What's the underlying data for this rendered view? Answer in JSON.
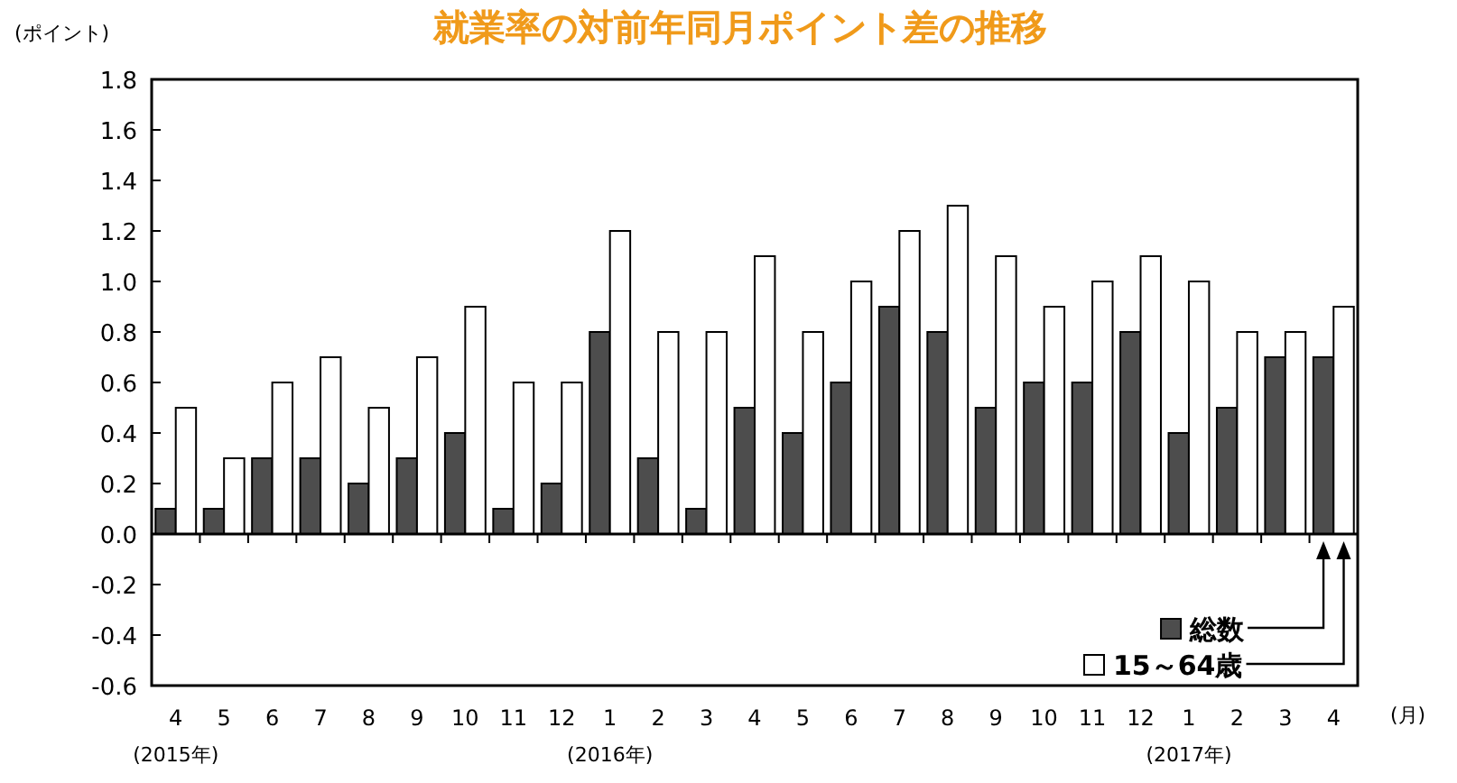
{
  "chart_data": {
    "type": "bar",
    "title": "就業率の対前年同月ポイント差の推移",
    "ylabel": "(ポイント)",
    "xlabel": "(月)",
    "categories": [
      "4\n(2015年)",
      "5",
      "6",
      "7",
      "8",
      "9",
      "10",
      "11",
      "12",
      "1\n(2016年)",
      "2",
      "3",
      "4",
      "5",
      "6",
      "7",
      "8",
      "9",
      "10",
      "11",
      "12",
      "1\n(2017年)",
      "2",
      "3",
      "4"
    ],
    "series": [
      {
        "name": "総数",
        "color": "#4d4d4d",
        "values": [
          0.1,
          0.1,
          0.3,
          0.3,
          0.2,
          0.3,
          0.4,
          0.1,
          0.2,
          0.8,
          0.3,
          0.1,
          0.5,
          0.4,
          0.6,
          0.9,
          0.8,
          0.5,
          0.6,
          0.6,
          0.8,
          0.4,
          0.5,
          0.7,
          0.7
        ]
      },
      {
        "name": "15～64歳",
        "color": "#ffffff",
        "values": [
          0.5,
          0.3,
          0.6,
          0.7,
          0.5,
          0.7,
          0.9,
          0.6,
          0.6,
          1.2,
          0.8,
          0.8,
          1.1,
          0.8,
          1.0,
          1.2,
          1.3,
          1.1,
          0.9,
          1.0,
          1.1,
          1.0,
          0.8,
          0.8,
          0.9
        ]
      }
    ],
    "ylim": [
      -0.6,
      1.8
    ],
    "yticks": [
      {
        "value": -0.6,
        "label": "-0.6"
      },
      {
        "value": -0.4,
        "label": "-0.4"
      },
      {
        "value": -0.2,
        "label": "-0.2"
      },
      {
        "value": 0,
        "label": "0.0"
      },
      {
        "value": 0.2,
        "label": "0.2"
      },
      {
        "value": 0.4,
        "label": "0.4"
      },
      {
        "value": 0.6,
        "label": "0.6"
      },
      {
        "value": 0.8,
        "label": "0.8"
      },
      {
        "value": 1,
        "label": "1.0"
      },
      {
        "value": 1.2,
        "label": "1.2"
      },
      {
        "value": 1.4,
        "label": "1.4"
      },
      {
        "value": 1.6,
        "label": "1.6"
      },
      {
        "value": 1.8,
        "label": "1.8"
      }
    ],
    "legend": "bottom right"
  }
}
